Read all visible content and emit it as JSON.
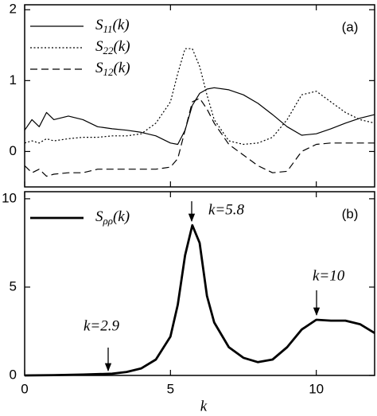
{
  "chart_data": [
    {
      "type": "line",
      "panel_label": "(a)",
      "x": [
        0,
        0.25,
        0.5,
        0.75,
        1,
        1.5,
        2,
        2.5,
        3,
        3.5,
        4,
        4.5,
        5,
        5.25,
        5.5,
        5.75,
        6,
        6.25,
        6.5,
        7,
        7.5,
        8,
        8.5,
        9,
        9.5,
        10,
        10.5,
        11,
        11.5,
        12
      ],
      "series": [
        {
          "name": "S11(k)",
          "color": "#000000",
          "line_style": "solid",
          "values": [
            0.3,
            0.45,
            0.35,
            0.55,
            0.45,
            0.5,
            0.45,
            0.35,
            0.32,
            0.3,
            0.27,
            0.22,
            0.12,
            0.1,
            0.3,
            0.65,
            0.82,
            0.88,
            0.9,
            0.87,
            0.8,
            0.68,
            0.52,
            0.35,
            0.23,
            0.25,
            0.32,
            0.4,
            0.47,
            0.52
          ]
        },
        {
          "name": "S22(k)",
          "color": "#000000",
          "line_style": "dotted",
          "values": [
            0.12,
            0.15,
            0.12,
            0.18,
            0.15,
            0.18,
            0.2,
            0.2,
            0.22,
            0.22,
            0.25,
            0.4,
            0.7,
            1.1,
            1.45,
            1.45,
            1.2,
            0.8,
            0.45,
            0.15,
            0.1,
            0.12,
            0.2,
            0.45,
            0.8,
            0.85,
            0.7,
            0.55,
            0.45,
            0.4
          ]
        },
        {
          "name": "S12(k)",
          "color": "#000000",
          "line_style": "dashed",
          "values": [
            -0.2,
            -0.3,
            -0.25,
            -0.35,
            -0.32,
            -0.3,
            -0.3,
            -0.25,
            -0.25,
            -0.25,
            -0.25,
            -0.25,
            -0.22,
            -0.1,
            0.3,
            0.7,
            0.75,
            0.6,
            0.4,
            0.1,
            -0.05,
            -0.2,
            -0.3,
            -0.28,
            0,
            0.1,
            0.12,
            0.12,
            0.12,
            0.12
          ]
        }
      ],
      "xlim": [
        0,
        12
      ],
      "xticks": [
        0,
        5,
        10
      ],
      "ylim": [
        -0.5,
        2.07
      ],
      "yticks": [
        0,
        1,
        2
      ]
    },
    {
      "type": "line",
      "panel_label": "(b)",
      "xlabel": "k",
      "x": [
        0,
        1,
        2,
        3,
        3.5,
        4,
        4.5,
        5,
        5.25,
        5.5,
        5.75,
        6,
        6.25,
        6.5,
        7,
        7.5,
        8,
        8.5,
        9,
        9.5,
        10,
        10.5,
        11,
        11.5,
        12
      ],
      "series": [
        {
          "name": "Sρρ(k)",
          "color": "#000000",
          "line_style": "thick",
          "values": [
            0,
            0.02,
            0.05,
            0.1,
            0.2,
            0.4,
            0.9,
            2.2,
            4,
            6.8,
            8.5,
            7.5,
            4.5,
            3,
            1.6,
            1,
            0.75,
            0.9,
            1.6,
            2.6,
            3.15,
            3.1,
            3.1,
            2.9,
            2.4
          ]
        }
      ],
      "annotations": [
        "k=2.9",
        "k=5.8",
        "k=10"
      ],
      "xlim": [
        0,
        12
      ],
      "xticks": [
        0,
        5,
        10
      ],
      "ylim": [
        0,
        10.4
      ],
      "yticks": [
        0,
        5,
        10
      ]
    }
  ]
}
